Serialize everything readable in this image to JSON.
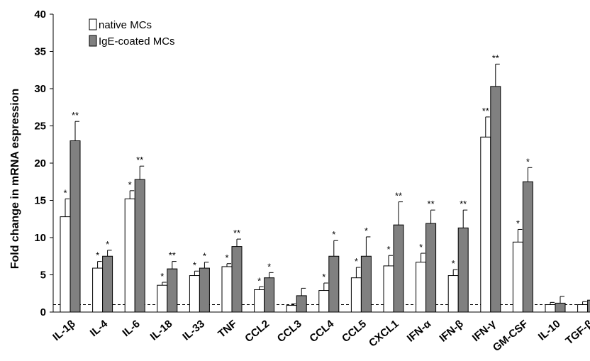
{
  "chart_data": {
    "type": "bar",
    "ylabel": "Fold change in mRNA espression",
    "xlabel": "",
    "ylim": [
      0,
      40
    ],
    "yticks": [
      0,
      5,
      10,
      15,
      20,
      25,
      30,
      35,
      40
    ],
    "reference_line": 1,
    "legend_position": "top-left",
    "categories": [
      "IL-1β",
      "IL-4",
      "IL-6",
      "IL-18",
      "IL-33",
      "TNF",
      "CCL2",
      "CCL3",
      "CCL4",
      "CCL5",
      "CXCL1",
      "IFN-α",
      "IFN-β",
      "IFN-γ",
      "GM-CSF",
      "IL-10",
      "TGF-β"
    ],
    "series": [
      {
        "name": "native MCs",
        "color": "#ffffff",
        "values": [
          12.8,
          5.9,
          15.2,
          3.6,
          4.9,
          6.1,
          3.0,
          0.9,
          2.9,
          4.6,
          6.2,
          6.7,
          4.9,
          23.5,
          9.4,
          1.0,
          1.0
        ],
        "errors": [
          2.4,
          0.9,
          1.1,
          0.4,
          0.6,
          0.4,
          0.4,
          0.2,
          1.0,
          1.4,
          1.4,
          1.2,
          0.8,
          2.7,
          1.7,
          0.3,
          0.4
        ],
        "significance": [
          "*",
          "*",
          "*",
          "*",
          "*",
          "*",
          "*",
          "",
          "*",
          "*",
          "*",
          "*",
          "*",
          "**",
          "*",
          "",
          ""
        ]
      },
      {
        "name": "IgE-coated MCs",
        "color": "#808080",
        "values": [
          23.0,
          7.5,
          17.8,
          5.8,
          5.9,
          8.8,
          4.6,
          2.2,
          7.5,
          7.5,
          11.7,
          11.9,
          11.3,
          30.3,
          17.5,
          1.2,
          1.6
        ],
        "errors": [
          2.6,
          0.8,
          1.8,
          1.0,
          0.8,
          1.0,
          0.7,
          1.0,
          2.1,
          2.6,
          3.1,
          1.8,
          2.4,
          3.0,
          1.9,
          0.9,
          0.8
        ],
        "significance": [
          "**",
          "*",
          "**",
          "**",
          "*",
          "**",
          "*",
          "",
          "*",
          "*",
          "**",
          "**",
          "**",
          "**",
          "*",
          "",
          ""
        ]
      }
    ]
  },
  "legend": {
    "native": "native MCs",
    "ige": "IgE-coated MCs"
  }
}
